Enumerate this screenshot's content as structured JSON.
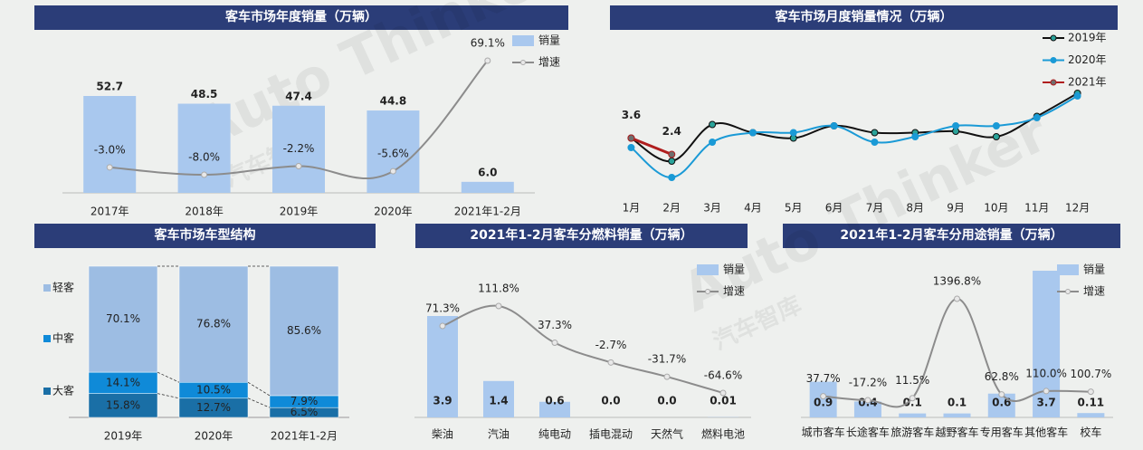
{
  "watermark": {
    "brand": "Auto Thinker",
    "cn": "汽车智库"
  },
  "chart_data": [
    {
      "type": "bar",
      "title": "客车市场年度销量（万辆）",
      "categories": [
        "2017年",
        "2018年",
        "2019年",
        "2020年",
        "2021年1-2月"
      ],
      "series": [
        {
          "name": "销量",
          "color": "#a9c8ee",
          "values": [
            52.7,
            48.5,
            47.4,
            44.8,
            6.0
          ],
          "value_labels": [
            "52.7",
            "48.5",
            "47.4",
            "44.8",
            "6.0"
          ]
        },
        {
          "name": "增速",
          "type": "line",
          "axis": "y2",
          "color": "#8c8c8c",
          "values": [
            -3.0,
            -8.0,
            -2.2,
            -5.6,
            69.1
          ],
          "value_labels": [
            "-3.0%",
            "-8.0%",
            "-2.2%",
            "-5.6%",
            "69.1%"
          ]
        }
      ]
    },
    {
      "type": "line",
      "title": "客车市场月度销量情况（万辆）",
      "categories": [
        "1月",
        "2月",
        "3月",
        "4月",
        "5月",
        "6月",
        "7月",
        "8月",
        "9月",
        "10月",
        "11月",
        "12月"
      ],
      "series": [
        {
          "name": "2019年",
          "color": "#111111",
          "marker": "#2aa39a",
          "values": [
            3.6,
            1.9,
            4.6,
            4.0,
            3.6,
            4.5,
            4.0,
            4.0,
            4.1,
            3.7,
            5.2,
            6.9
          ]
        },
        {
          "name": "2020年",
          "color": "#1a9ad6",
          "marker": "#1a9ad6",
          "values": [
            2.9,
            0.7,
            3.3,
            4.0,
            4.0,
            4.5,
            3.3,
            3.7,
            4.5,
            4.5,
            5.1,
            6.7
          ]
        },
        {
          "name": "2021年",
          "color": "#b01e1e",
          "marker": "#6e6e6e",
          "labels": true,
          "values": [
            3.6,
            2.4,
            null,
            null,
            null,
            null,
            null,
            null,
            null,
            null,
            null,
            null
          ]
        }
      ]
    },
    {
      "type": "stacked_bar",
      "title": "客车市场车型结构",
      "categories": [
        "2019年",
        "2020年",
        "2021年1-2月"
      ],
      "series": [
        {
          "name": "大客",
          "color": "#1a6fa6",
          "values": [
            15.8,
            12.7,
            6.5
          ],
          "value_labels": [
            "15.8%",
            "12.7%",
            "6.5%"
          ]
        },
        {
          "name": "中客",
          "color": "#0f8ad8",
          "values": [
            14.1,
            10.5,
            7.9
          ],
          "value_labels": [
            "14.1%",
            "10.5%",
            "7.9%"
          ]
        },
        {
          "name": "轻客",
          "color": "#9dbde3",
          "values": [
            70.1,
            76.8,
            85.6
          ],
          "value_labels": [
            "70.1%",
            "76.8%",
            "85.6%"
          ]
        }
      ]
    },
    {
      "type": "bar",
      "title": "2021年1-2月客车分燃料销量（万辆）",
      "categories": [
        "柴油",
        "汽油",
        "纯电动",
        "插电混动",
        "天然气",
        "燃料电池"
      ],
      "series": [
        {
          "name": "销量",
          "color": "#a9c8ee",
          "values": [
            3.9,
            1.4,
            0.6,
            0.0,
            0.0,
            0.01
          ],
          "value_labels": [
            "3.9",
            "1.4",
            "0.6",
            "0.0",
            "0.0",
            "0.01"
          ]
        },
        {
          "name": "增速",
          "type": "line",
          "axis": "y2",
          "color": "#8c8c8c",
          "values": [
            71.3,
            111.8,
            37.3,
            -2.7,
            -31.7,
            -64.6
          ],
          "value_labels": [
            "71.3%",
            "111.8%",
            "37.3%",
            "-2.7%",
            "-31.7%",
            "-64.6%"
          ]
        }
      ]
    },
    {
      "type": "bar",
      "title": "2021年1-2月客车分用途销量（万辆）",
      "categories": [
        "城市客车",
        "长途客车",
        "旅游客车",
        "越野客车",
        "专用客车",
        "其他客车",
        "校车"
      ],
      "series": [
        {
          "name": "销量",
          "color": "#a9c8ee",
          "values": [
            0.9,
            0.4,
            0.1,
            0.1,
            0.6,
            3.7,
            0.11
          ]
        },
        {
          "name": "增速",
          "type": "line",
          "axis": "y2",
          "color": "#8c8c8c",
          "values": [
            37.7,
            -17.2,
            11.5,
            1396.8,
            62.8,
            110.0,
            100.7
          ],
          "value_labels": [
            "37.7%",
            "-17.2%",
            "11.5%",
            "1396.8%",
            "62.8%",
            "110.0%",
            "100.7%"
          ]
        }
      ]
    }
  ]
}
